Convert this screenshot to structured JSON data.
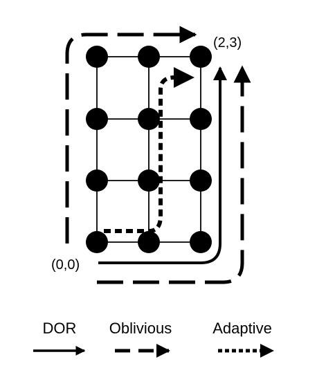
{
  "labels": {
    "origin": "(0,0)",
    "destination": "(2,3)"
  },
  "legend": [
    {
      "label": "DOR",
      "style": "solid"
    },
    {
      "label": "Oblivious",
      "style": "dashed"
    },
    {
      "label": "Adaptive",
      "style": "dotted"
    }
  ],
  "grid": {
    "columns": 3,
    "rows": 4
  },
  "colors": {
    "ink": "#000000",
    "background": "#ffffff"
  }
}
